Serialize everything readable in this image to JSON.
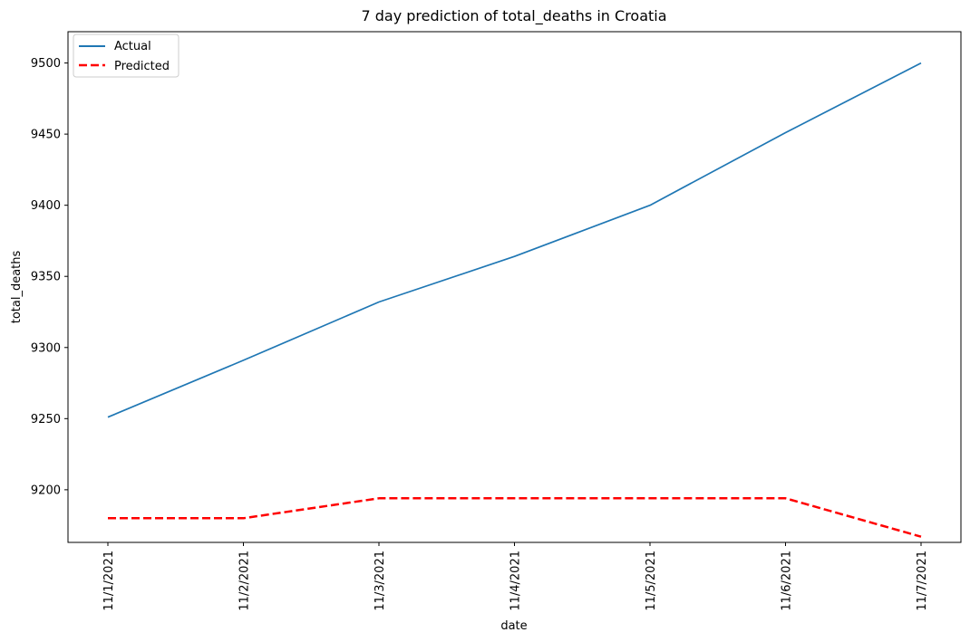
{
  "chart_data": {
    "type": "line",
    "title": "7 day prediction of total_deaths in Croatia",
    "xlabel": "date",
    "ylabel": "total_deaths",
    "x": [
      "11/1/2021",
      "11/2/2021",
      "11/3/2021",
      "11/4/2021",
      "11/5/2021",
      "11/6/2021",
      "11/7/2021"
    ],
    "yticks": [
      9200,
      9250,
      9300,
      9350,
      9400,
      9450,
      9500
    ],
    "ylim": [
      9163,
      9522
    ],
    "grid": false,
    "legend": "top-left",
    "series": [
      {
        "name": "Actual",
        "values": [
          9251,
          9291,
          9332,
          9364,
          9400,
          9451,
          9500
        ],
        "color": "#1f77b4",
        "style": "solid"
      },
      {
        "name": "Predicted",
        "values": [
          9180,
          9180,
          9194,
          9194,
          9194,
          9194,
          9167
        ],
        "color": "#ff0000",
        "style": "dashed"
      }
    ]
  }
}
